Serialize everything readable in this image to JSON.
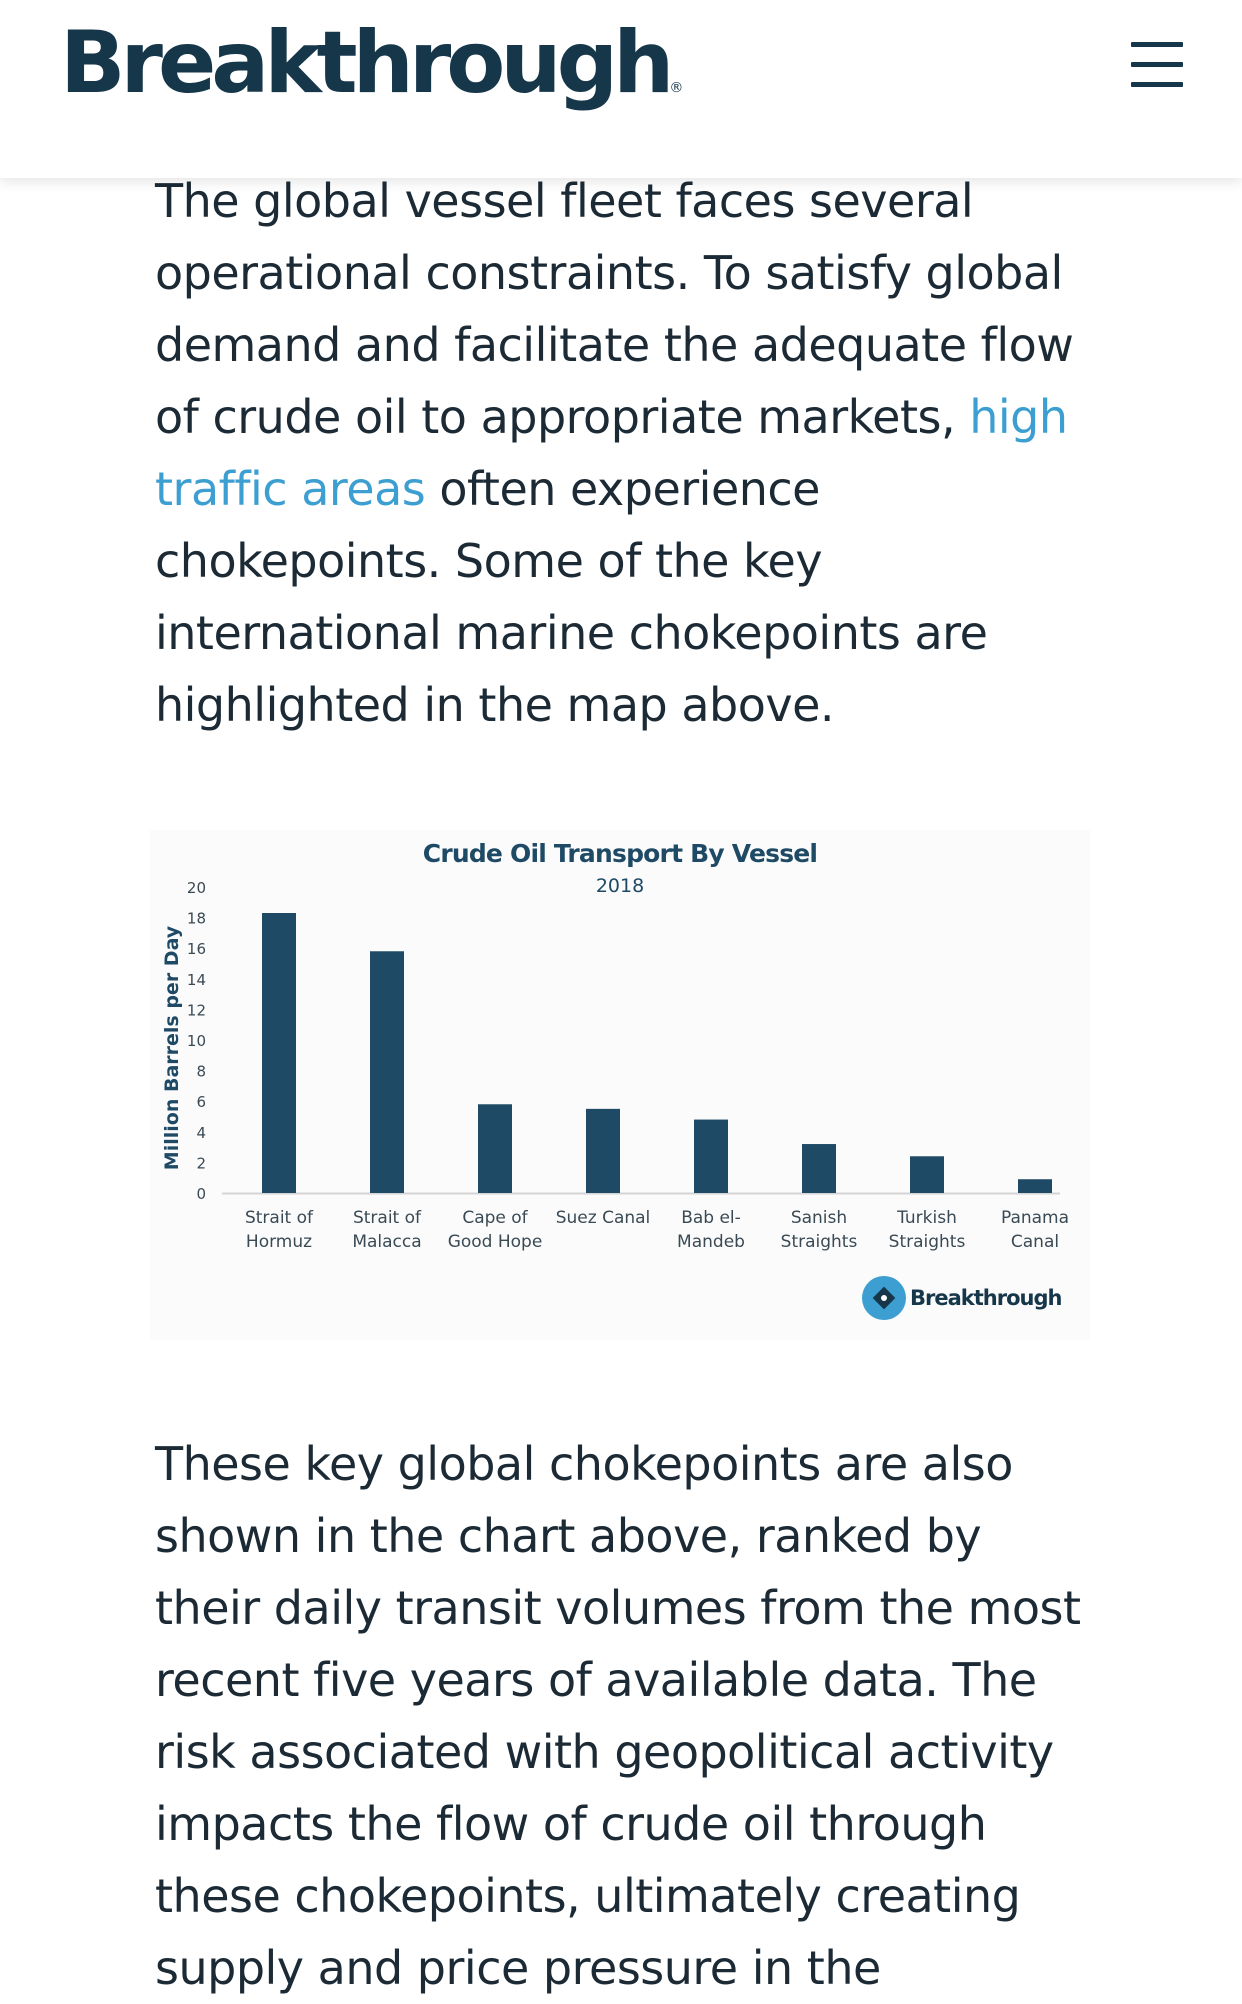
{
  "header": {
    "logo_text": "Breakthrough",
    "logo_reg": "®",
    "menu_icon": "hamburger-menu-icon"
  },
  "intro": {
    "before_link": "The global vessel fleet faces several operational constraints. To satisfy global demand and facilitate the adequate flow of crude oil to appropriate markets, ",
    "link_text": "high traffic areas",
    "after_link": " often experience chokepoints. Some of the key international marine chokepoints are highlighted in the map above."
  },
  "chart_data": {
    "type": "bar",
    "title": "Crude Oil Transport By Vessel",
    "subtitle": "2018",
    "xlabel": "",
    "ylabel": "Million Barrels per Day",
    "ylim": [
      0,
      20
    ],
    "yticks": [
      "0",
      "2",
      "4",
      "6",
      "8",
      "10",
      "12",
      "14",
      "16",
      "18",
      "20"
    ],
    "categories": [
      [
        "Strait of",
        "Hormuz"
      ],
      [
        "Strait of",
        "Malacca"
      ],
      [
        "Cape of",
        "Good Hope"
      ],
      [
        "Suez Canal"
      ],
      [
        "Bab el-",
        "Mandeb"
      ],
      [
        "Sanish",
        "Straights"
      ],
      [
        "Turkish",
        "Straights"
      ],
      [
        "Panama",
        "Canal"
      ]
    ],
    "values": [
      18.3,
      15.8,
      5.8,
      5.5,
      4.8,
      3.2,
      2.4,
      0.9
    ],
    "bar_color": "#1f4a66",
    "grid": false,
    "legend": "none",
    "watermark": "Breakthrough"
  },
  "outro": {
    "text": "These key global chokepoints are also shown in the chart above, ranked by their daily transit volumes from the most recent five years of available data. The risk associated with geopolitical activity impacts the flow of crude oil through these chokepoints, ultimately creating supply and price pressure in the"
  },
  "colors": {
    "brand": "#16364a",
    "link": "#3d9fd1",
    "text": "#1b2a35"
  }
}
